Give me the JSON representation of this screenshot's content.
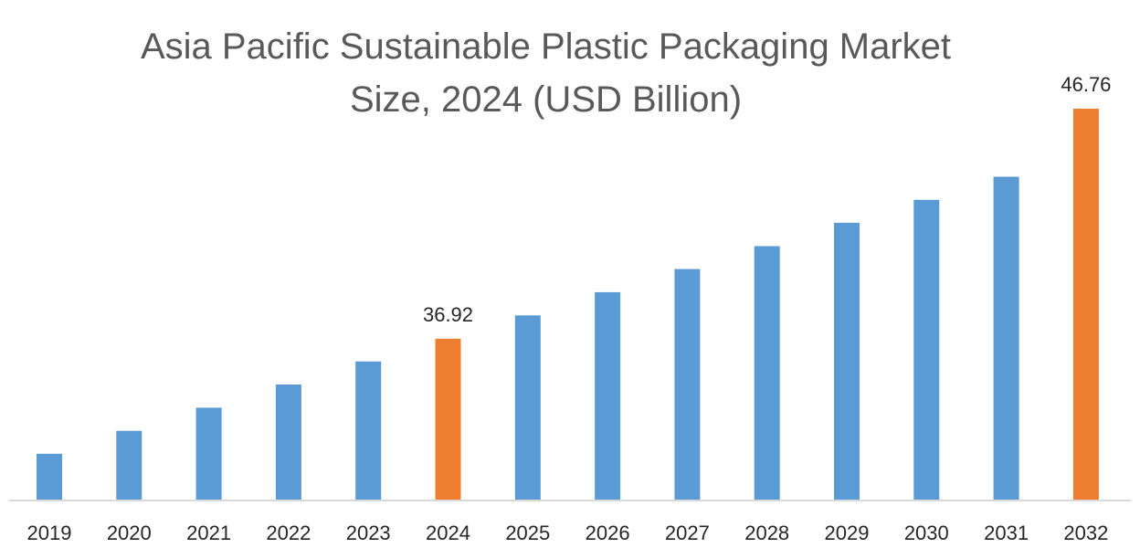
{
  "chart_data": {
    "type": "bar",
    "title_lines": [
      "Asia Pacific Sustainable Plastic Packaging Market",
      "Size, 2024 (USD Billion)"
    ],
    "xlabel": "",
    "ylabel": "",
    "categories": [
      "2019",
      "2020",
      "2021",
      "2022",
      "2023",
      "2024",
      "2025",
      "2026",
      "2027",
      "2028",
      "2029",
      "2030",
      "2031",
      "2032"
    ],
    "values": [
      32.0,
      32.98,
      33.97,
      34.96,
      35.95,
      36.92,
      37.92,
      38.91,
      39.9,
      40.88,
      41.88,
      42.86,
      43.85,
      46.76
    ],
    "ylim": [
      30,
      46.76
    ],
    "grid": false,
    "legend": "none",
    "data_labels": [
      {
        "category": "2024",
        "text": "36.92"
      },
      {
        "category": "2032",
        "text": "46.76"
      }
    ],
    "colors": {
      "default": "#5B9BD5",
      "highlight": "#ED7D31",
      "axis": "#D9D9D9"
    },
    "highlight_categories": [
      "2024",
      "2032"
    ]
  }
}
